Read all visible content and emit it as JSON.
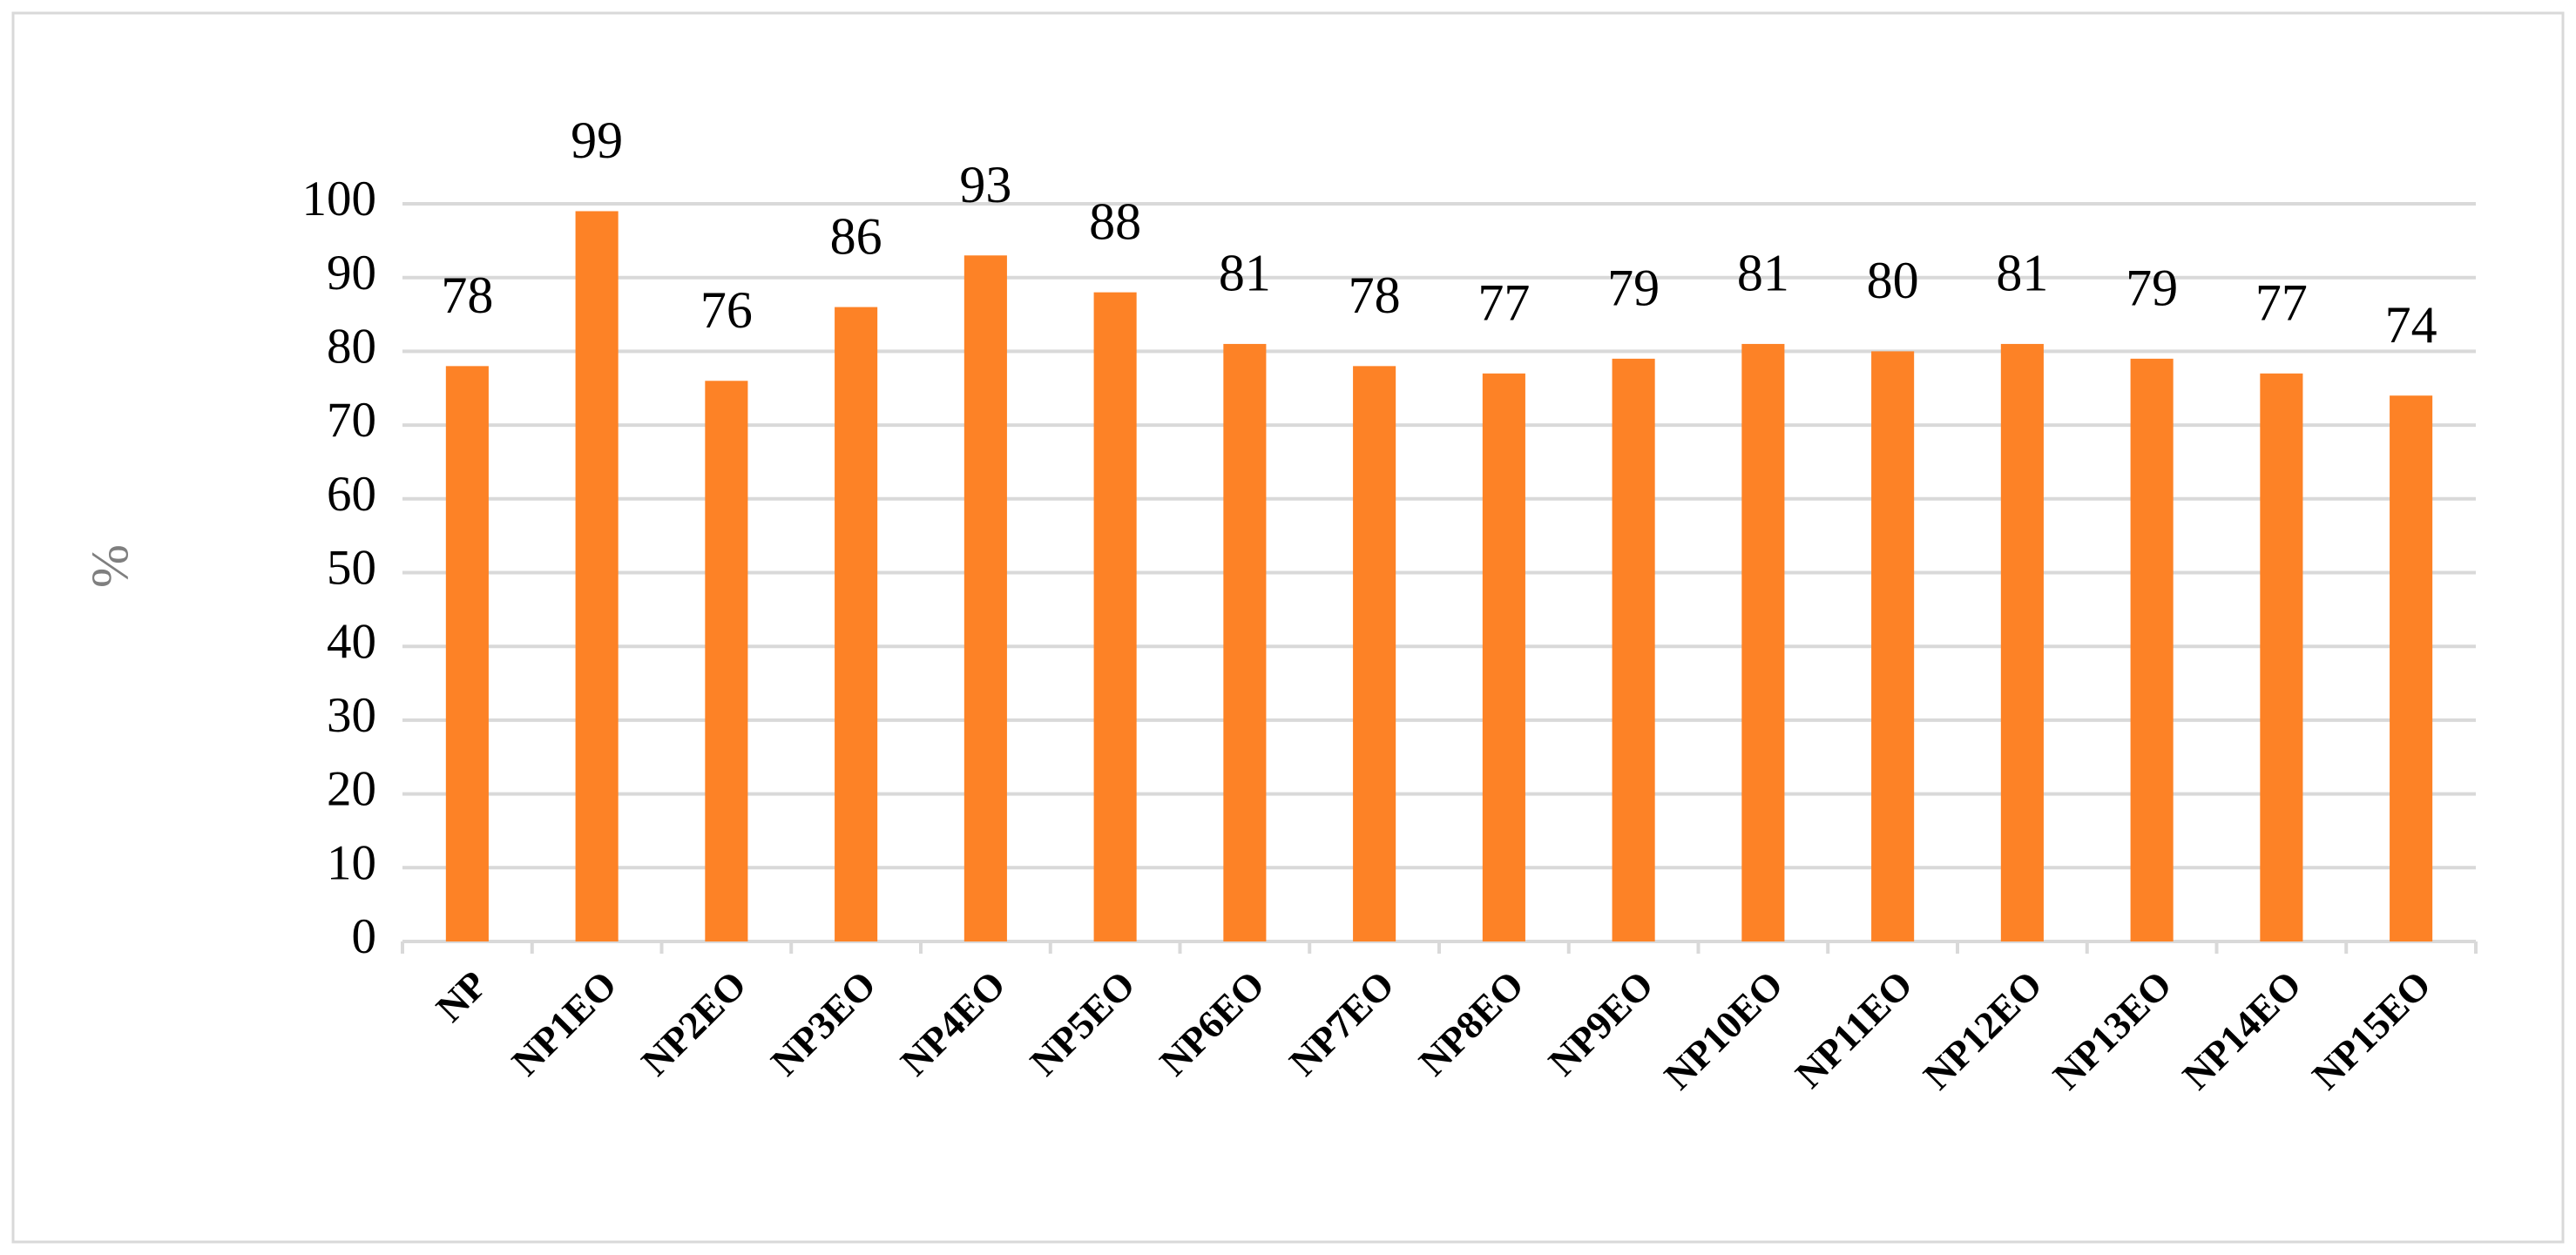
{
  "chart_data": {
    "type": "bar",
    "y_label": "%",
    "categories": [
      "NP",
      "NP1EO",
      "NP2EO",
      "NP3EO",
      "NP4EO",
      "NP5EO",
      "NP6EO",
      "NP7EO",
      "NP8EO",
      "NP9EO",
      "NP10EO",
      "NP11EO",
      "NP12EO",
      "NP13EO",
      "NP14EO",
      "NP15EO"
    ],
    "values": [
      78,
      99,
      76,
      86,
      93,
      88,
      81,
      78,
      77,
      79,
      81,
      80,
      81,
      79,
      77,
      74
    ],
    "color": "#fd8226",
    "ylim": [
      0,
      100
    ],
    "yticks": [
      0,
      10,
      20,
      30,
      40,
      50,
      60,
      70,
      80,
      90,
      100
    ],
    "grid": true
  }
}
